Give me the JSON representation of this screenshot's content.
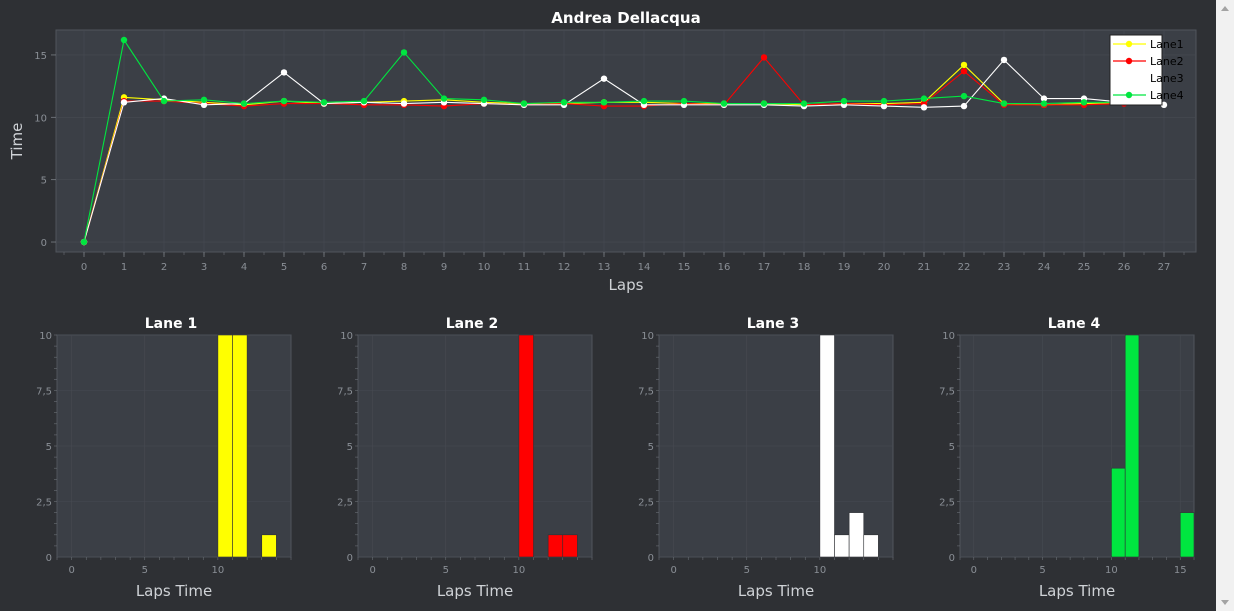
{
  "chart_data": [
    {
      "type": "line",
      "title": "Andrea Dellacqua",
      "xlabel": "Laps",
      "ylabel": "Time",
      "xlim": [
        -0.7,
        27.8
      ],
      "ylim": [
        -0.8,
        17
      ],
      "x_ticks": [
        0,
        1,
        2,
        3,
        4,
        5,
        6,
        7,
        8,
        9,
        10,
        11,
        12,
        13,
        14,
        15,
        16,
        17,
        18,
        19,
        20,
        21,
        22,
        23,
        24,
        25,
        26,
        27
      ],
      "y_ticks": [
        0,
        5,
        10,
        15
      ],
      "grid": true,
      "legend": "top-right",
      "series": [
        {
          "name": "Lane1",
          "color": "#ffff00",
          "x": [
            0,
            1,
            2,
            3,
            4,
            5,
            6,
            7,
            8,
            9,
            10,
            11,
            12,
            13,
            14,
            15,
            16,
            17,
            18,
            19,
            20,
            21,
            22,
            23,
            24,
            25,
            26
          ],
          "y": [
            0,
            11.6,
            11.4,
            11.2,
            11.0,
            11.3,
            11.1,
            11.2,
            11.3,
            11.4,
            11.2,
            11.1,
            11.1,
            11.2,
            11.2,
            11.1,
            11.1,
            11.1,
            11.0,
            11.1,
            11.1,
            11.2,
            14.2,
            11.1,
            11.0,
            11.1,
            11.2
          ]
        },
        {
          "name": "Lane2",
          "color": "#ff0000",
          "x": [
            0,
            1,
            2,
            3,
            4,
            5,
            6,
            7,
            8,
            9,
            10,
            11,
            12,
            13,
            14,
            15,
            16,
            17,
            18,
            19,
            20,
            21,
            22,
            23,
            24,
            25,
            26
          ],
          "y": [
            0,
            11.3,
            11.3,
            11.1,
            10.9,
            11.1,
            11.1,
            11.0,
            11.0,
            10.9,
            11.1,
            11.0,
            11.1,
            10.9,
            10.9,
            11.1,
            11.0,
            14.8,
            11.0,
            11.1,
            11.0,
            11.1,
            13.7,
            11.0,
            11.0,
            11.0,
            11.1
          ]
        },
        {
          "name": "Lane3",
          "color": "#ffffff",
          "x": [
            0,
            1,
            2,
            3,
            4,
            5,
            6,
            7,
            8,
            9,
            10,
            11,
            12,
            13,
            14,
            15,
            16,
            17,
            18,
            19,
            20,
            21,
            22,
            23,
            24,
            25,
            26,
            27
          ],
          "y": [
            0,
            11.2,
            11.5,
            11.0,
            11.1,
            13.6,
            11.1,
            11.2,
            11.1,
            11.2,
            11.1,
            11.0,
            11.0,
            13.1,
            11.0,
            11.0,
            11.0,
            11.0,
            10.9,
            11.0,
            10.9,
            10.8,
            10.9,
            14.6,
            11.5,
            11.5,
            11.2,
            11.0
          ]
        },
        {
          "name": "Lane4",
          "color": "#00e640",
          "x": [
            0,
            1,
            2,
            3,
            4,
            5,
            6,
            7,
            8,
            9,
            10,
            11,
            12,
            13,
            14,
            15,
            16,
            17,
            18,
            19,
            20,
            21,
            22,
            23,
            24,
            25,
            26
          ],
          "y": [
            0,
            16.2,
            11.3,
            11.4,
            11.1,
            11.3,
            11.2,
            11.3,
            15.2,
            11.5,
            11.4,
            11.1,
            11.2,
            11.2,
            11.3,
            11.3,
            11.1,
            11.1,
            11.1,
            11.3,
            11.3,
            11.5,
            11.7,
            11.1,
            11.1,
            11.2,
            11.2
          ]
        }
      ]
    },
    {
      "type": "bar",
      "title": "Lane 1",
      "xlabel": "Laps Time",
      "ylabel": "",
      "color": "#ffff00",
      "xlim": [
        -1,
        15
      ],
      "ylim": [
        0,
        10
      ],
      "x_ticks": [
        0,
        5,
        10
      ],
      "y_ticks": [
        0,
        2.5,
        5,
        7.5,
        10
      ],
      "y_tick_labels": [
        "0",
        "2,5",
        "5",
        "7,5",
        "10"
      ],
      "bars": [
        {
          "x0": 10,
          "x1": 11,
          "value": 10
        },
        {
          "x0": 11,
          "x1": 12,
          "value": 10
        },
        {
          "x0": 13,
          "x1": 14,
          "value": 1
        }
      ]
    },
    {
      "type": "bar",
      "title": "Lane 2",
      "xlabel": "Laps Time",
      "ylabel": "",
      "color": "#ff0000",
      "xlim": [
        -1,
        15
      ],
      "ylim": [
        0,
        10
      ],
      "x_ticks": [
        0,
        5,
        10
      ],
      "y_ticks": [
        0,
        2.5,
        5,
        7.5,
        10
      ],
      "y_tick_labels": [
        "0",
        "2,5",
        "5",
        "7,5",
        "10"
      ],
      "bars": [
        {
          "x0": 10,
          "x1": 11,
          "value": 10
        },
        {
          "x0": 12,
          "x1": 13,
          "value": 1
        },
        {
          "x0": 13,
          "x1": 14,
          "value": 1
        }
      ]
    },
    {
      "type": "bar",
      "title": "Lane 3",
      "xlabel": "Laps Time",
      "ylabel": "",
      "color": "#ffffff",
      "xlim": [
        -1,
        15
      ],
      "ylim": [
        0,
        10
      ],
      "x_ticks": [
        0,
        5,
        10
      ],
      "y_ticks": [
        0,
        2.5,
        5,
        7.5,
        10
      ],
      "y_tick_labels": [
        "0",
        "2,5",
        "5",
        "7,5",
        "10"
      ],
      "bars": [
        {
          "x0": 10,
          "x1": 11,
          "value": 10
        },
        {
          "x0": 11,
          "x1": 12,
          "value": 1
        },
        {
          "x0": 12,
          "x1": 13,
          "value": 2
        },
        {
          "x0": 13,
          "x1": 14,
          "value": 1
        }
      ]
    },
    {
      "type": "bar",
      "title": "Lane 4",
      "xlabel": "Laps Time",
      "ylabel": "",
      "color": "#00e640",
      "xlim": [
        -1,
        16
      ],
      "ylim": [
        0,
        10
      ],
      "x_ticks": [
        0,
        5,
        10,
        15
      ],
      "y_ticks": [
        0,
        2.5,
        5,
        7.5,
        10
      ],
      "y_tick_labels": [
        "0",
        "2,5",
        "5",
        "7,5",
        "10"
      ],
      "bars": [
        {
          "x0": 10,
          "x1": 11,
          "value": 4
        },
        {
          "x0": 11,
          "x1": 12,
          "value": 10
        },
        {
          "x0": 15,
          "x1": 16,
          "value": 2
        }
      ]
    }
  ]
}
